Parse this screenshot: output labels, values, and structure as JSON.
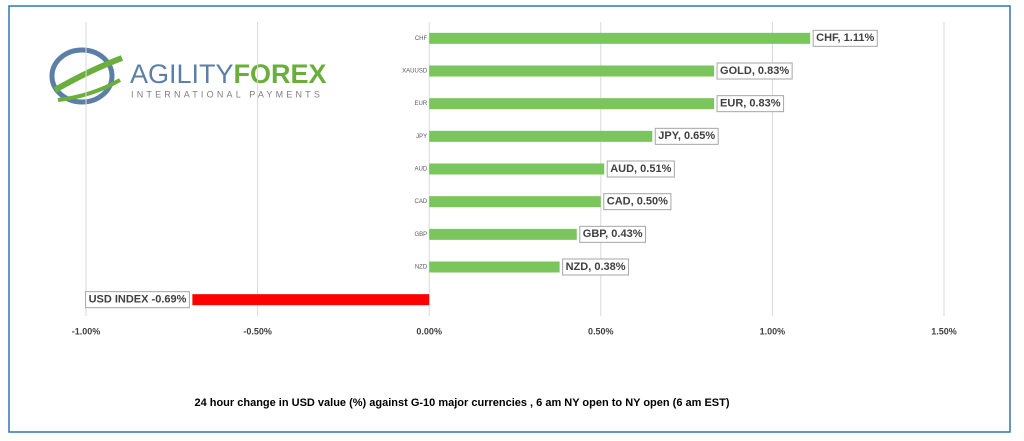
{
  "logo": {
    "name_part1": "AGILITY",
    "name_part2": "FOREX",
    "tagline": "INTERNATIONAL PAYMENTS"
  },
  "chart_data": {
    "type": "hbar",
    "caption": "24 hour change in  USD value (%)  against  G-10 major currencies , 6 am NY open to NY open  (6 am EST)",
    "categories": [
      "CHF",
      "XAUUSD",
      "EUR",
      "JPY",
      "AUD",
      "CAD",
      "GBP",
      "NZD",
      null
    ],
    "values": [
      1.11,
      0.83,
      0.83,
      0.65,
      0.51,
      0.5,
      0.43,
      0.38,
      -0.69
    ],
    "value_labels": [
      "CHF, 1.11%",
      "GOLD, 0.83%",
      "EUR, 0.83%",
      "JPY, 0.65%",
      "AUD, 0.51%",
      "CAD, 0.50%",
      "GBP, 0.43%",
      "NZD, 0.38%",
      "USD INDEX -0.69%"
    ],
    "colors": [
      "#7ac55c",
      "#7ac55c",
      "#7ac55c",
      "#7ac55c",
      "#7ac55c",
      "#7ac55c",
      "#7ac55c",
      "#7ac55c",
      "#ff0000"
    ],
    "xlim": [
      -1,
      1.5
    ],
    "xticks": [
      {
        "value": -1,
        "label": "-1.00%"
      },
      {
        "value": -0.5,
        "label": "-0.50%"
      },
      {
        "value": 0,
        "label": "0.00%"
      },
      {
        "value": 0.5,
        "label": "0.50%"
      },
      {
        "value": 1,
        "label": "1.00%"
      },
      {
        "value": 1.5,
        "label": "1.50%"
      }
    ],
    "grid": true
  }
}
